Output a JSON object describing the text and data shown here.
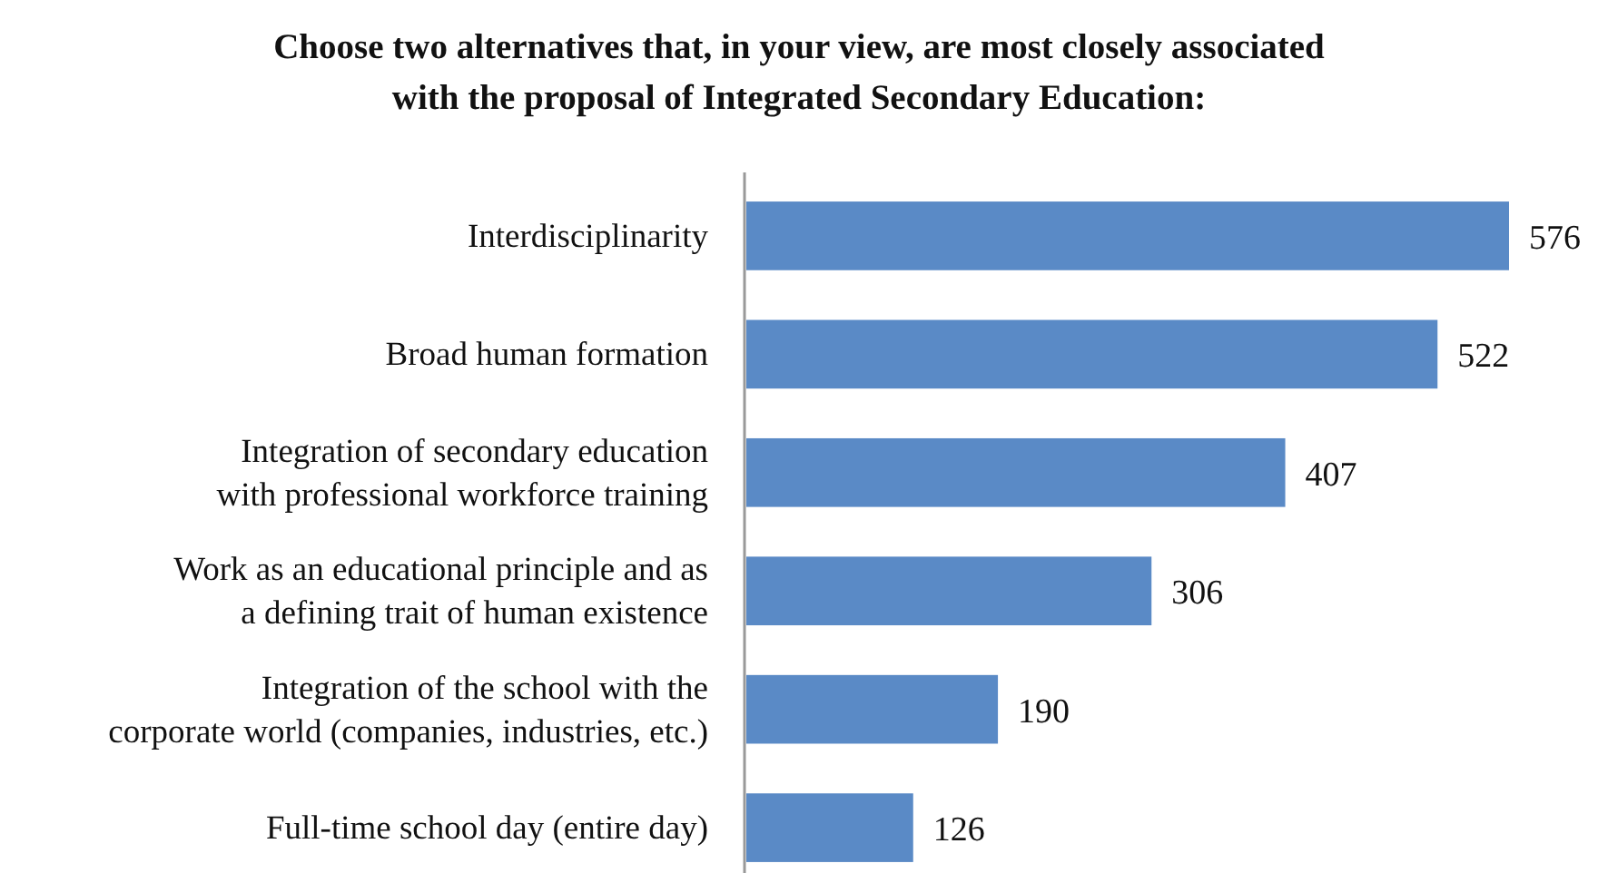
{
  "chart_data": {
    "type": "bar",
    "orientation": "horizontal",
    "title": "Choose two alternatives that, in your view, are most closely associated\nwith the proposal of Integrated Secondary Education:",
    "categories": [
      "Interdisciplinarity",
      "Broad human formation",
      "Integration of secondary education\nwith professional workforce training",
      "Work as an educational principle and as\na defining trait of human existence",
      "Integration of the school with the\ncorporate world (companies, industries, etc.)",
      "Full-time school day (entire day)"
    ],
    "values": [
      576,
      522,
      407,
      306,
      190,
      126
    ],
    "color": "#5a8ac6",
    "data_labels": true
  }
}
